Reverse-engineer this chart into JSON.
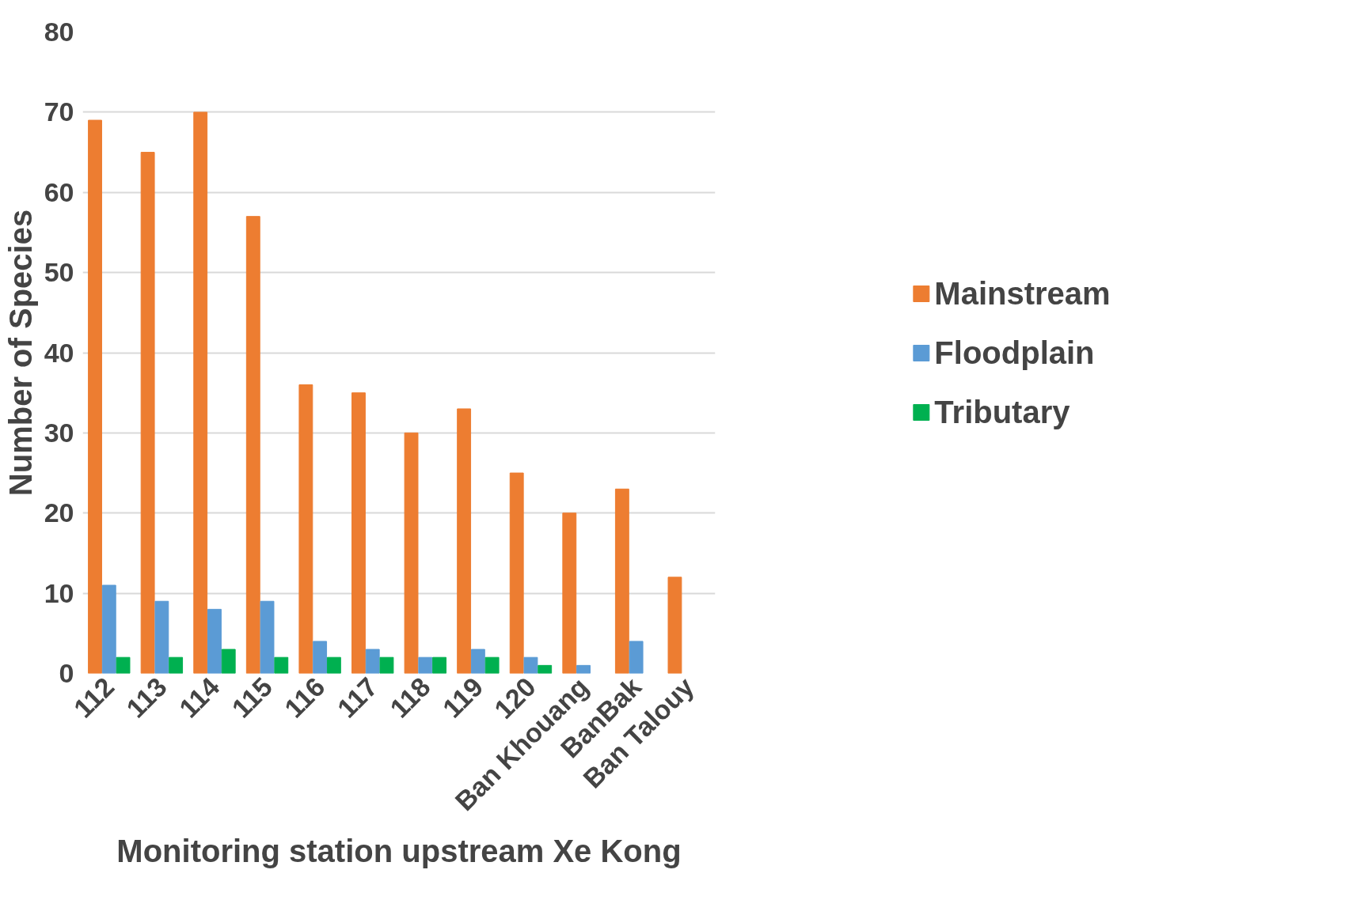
{
  "chart_data": {
    "type": "bar",
    "xlabel": "Monitoring station upstream Xe Kong",
    "ylabel": "Number of Species",
    "categories": [
      "112",
      "113",
      "114",
      "115",
      "116",
      "117",
      "118",
      "119",
      "120",
      "Ban Khouang",
      "BanBak",
      "Ban Talouy"
    ],
    "series": [
      {
        "name": "Mainstream",
        "color": "#ed7d31",
        "values": [
          69,
          65,
          70,
          57,
          36,
          35,
          30,
          33,
          25,
          20,
          23,
          12
        ]
      },
      {
        "name": "Floodplain",
        "color": "#5b9bd5",
        "values": [
          11,
          9,
          8,
          9,
          4,
          3,
          2,
          3,
          2,
          1,
          4,
          null
        ]
      },
      {
        "name": "Tributary",
        "color": "#00b050",
        "values": [
          2,
          2,
          3,
          2,
          2,
          2,
          2,
          2,
          1,
          null,
          null,
          null
        ]
      }
    ],
    "ylim": [
      0,
      80
    ],
    "yticks": [
      0,
      10,
      20,
      30,
      40,
      50,
      60,
      70,
      80
    ],
    "grid": "y",
    "legend": "right"
  }
}
